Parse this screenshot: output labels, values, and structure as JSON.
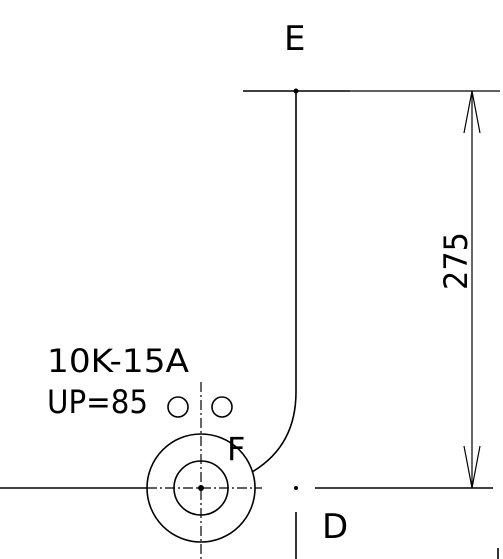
{
  "labels": {
    "point_e": "E",
    "point_d": "D",
    "point_f": "F",
    "spec_line_1": "10K-15A",
    "spec_line_2": "UP=85",
    "dimension": "275"
  }
}
